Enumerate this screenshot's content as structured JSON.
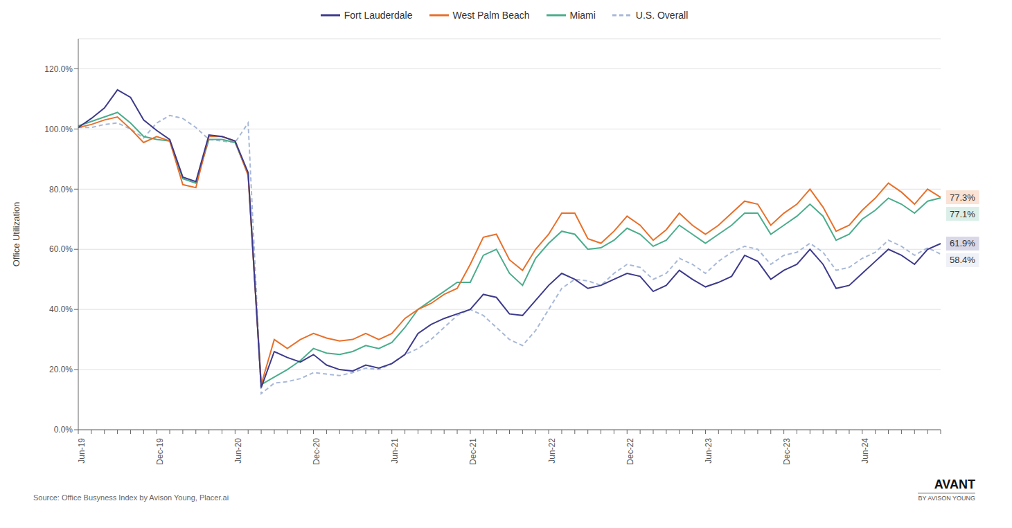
{
  "chart_data": {
    "type": "line",
    "y_label": "Office Utilization",
    "source": "Source: Office Busyness Index by Avison Young, Placer.ai",
    "logo": [
      "AVANT",
      "BY AVISON YOUNG"
    ],
    "categories": [
      "Jun-19",
      null,
      null,
      null,
      null,
      null,
      "Dec-19",
      null,
      null,
      null,
      null,
      null,
      "Jun-20",
      null,
      null,
      null,
      null,
      null,
      "Dec-20",
      null,
      null,
      null,
      null,
      null,
      "Jun-21",
      null,
      null,
      null,
      null,
      null,
      "Dec-21",
      null,
      null,
      null,
      null,
      null,
      "Jun-22",
      null,
      null,
      null,
      null,
      null,
      "Dec-22",
      null,
      null,
      null,
      null,
      null,
      "Jun-23",
      null,
      null,
      null,
      null,
      null,
      "Dec-23",
      null,
      null,
      null,
      null,
      null,
      "Jun-24",
      null,
      null,
      null,
      null,
      null,
      null
    ],
    "series": [
      {
        "name": "Fort Lauderdale",
        "color": "#3d3a8c",
        "line_style": "solid",
        "values": [
          100.5,
          103.5,
          107.0,
          113.0,
          110.5,
          103.0,
          99.5,
          96.5,
          84.0,
          82.5,
          98.0,
          97.5,
          96.0,
          85.5,
          14.0,
          26.0,
          24.0,
          22.5,
          25.0,
          21.5,
          20.0,
          19.5,
          21.5,
          20.5,
          22.0,
          25.0,
          32.0,
          35.0,
          37.0,
          38.5,
          40.0,
          45.0,
          44.0,
          38.5,
          38.0,
          43.0,
          48.0,
          52.0,
          50.0,
          47.0,
          48.0,
          50.0,
          52.0,
          51.0,
          46.0,
          48.0,
          53.0,
          50.0,
          47.5,
          49.0,
          51.0,
          58.0,
          56.0,
          50.0,
          53.0,
          55.0,
          60.0,
          55.0,
          47.0,
          48.0,
          52.0,
          56.0,
          60.0,
          58.0,
          55.0,
          60.0,
          61.9
        ]
      },
      {
        "name": "West Palm Beach",
        "color": "#e8702a",
        "line_style": "solid",
        "values": [
          100.5,
          101.5,
          103.0,
          104.0,
          100.0,
          95.5,
          97.5,
          96.0,
          81.5,
          80.5,
          97.5,
          97.5,
          96.0,
          84.5,
          15.0,
          30.0,
          27.0,
          30.0,
          32.0,
          30.5,
          29.5,
          30.0,
          32.0,
          30.0,
          32.0,
          37.0,
          40.0,
          42.0,
          45.0,
          47.0,
          55.0,
          64.0,
          65.0,
          56.5,
          53.0,
          60.0,
          65.0,
          72.0,
          72.0,
          63.5,
          62.0,
          66.0,
          71.0,
          68.0,
          63.0,
          66.5,
          72.0,
          68.0,
          65.0,
          68.0,
          72.0,
          76.0,
          75.0,
          68.0,
          72.0,
          75.0,
          80.0,
          74.0,
          66.0,
          68.0,
          73.0,
          77.0,
          82.0,
          79.0,
          75.0,
          80.0,
          77.3
        ]
      },
      {
        "name": "Miami",
        "color": "#4aad8b",
        "line_style": "solid",
        "values": [
          101.0,
          102.5,
          104.0,
          105.5,
          102.0,
          97.5,
          96.5,
          96.0,
          83.5,
          82.0,
          96.5,
          96.5,
          95.5,
          85.0,
          15.0,
          17.5,
          20.0,
          23.0,
          27.0,
          25.5,
          25.0,
          26.0,
          28.0,
          27.0,
          29.0,
          34.0,
          40.0,
          43.0,
          46.0,
          49.0,
          49.0,
          58.0,
          60.0,
          52.0,
          48.0,
          57.0,
          62.0,
          66.0,
          65.0,
          60.0,
          60.5,
          63.0,
          67.0,
          65.0,
          61.0,
          63.0,
          68.0,
          65.0,
          62.0,
          65.0,
          68.0,
          72.0,
          72.0,
          65.0,
          68.0,
          71.0,
          75.0,
          71.0,
          63.0,
          65.0,
          70.0,
          73.0,
          77.0,
          75.0,
          72.0,
          76.0,
          77.1
        ]
      },
      {
        "name": "U.S. Overall",
        "color": "#a8b8d8",
        "line_style": "dashed",
        "values": [
          100.5,
          100.5,
          101.5,
          102.0,
          100.0,
          97.0,
          102.0,
          104.5,
          103.5,
          100.5,
          96.5,
          96.0,
          95.5,
          102.0,
          12.0,
          15.5,
          16.0,
          17.0,
          19.0,
          18.5,
          18.0,
          19.0,
          20.5,
          20.0,
          22.0,
          25.0,
          27.0,
          30.0,
          34.0,
          38.0,
          40.0,
          38.0,
          34.0,
          30.0,
          28.0,
          33.0,
          40.0,
          47.0,
          50.0,
          49.5,
          48.0,
          52.0,
          55.0,
          54.0,
          50.0,
          52.0,
          57.0,
          55.0,
          52.0,
          56.0,
          59.0,
          61.0,
          60.0,
          55.0,
          58.0,
          59.0,
          62.0,
          59.0,
          53.0,
          54.0,
          57.0,
          59.0,
          63.0,
          61.0,
          58.0,
          60.5,
          58.4
        ]
      }
    ],
    "annotations": [
      "61.9%",
      "77.3%",
      "77.1%",
      "58.4%"
    ],
    "ylim": [
      0,
      130
    ],
    "yticks": [
      {
        "value": 0,
        "label": "0.0%"
      },
      {
        "value": 20,
        "label": "20.0%"
      },
      {
        "value": 40,
        "label": "40.0%"
      },
      {
        "value": 60,
        "label": "60.0%"
      },
      {
        "value": 80,
        "label": "80.0%"
      },
      {
        "value": 100,
        "label": "100.0%"
      },
      {
        "value": 120,
        "label": "120.0%"
      }
    ],
    "grid": true,
    "legend": "top"
  }
}
